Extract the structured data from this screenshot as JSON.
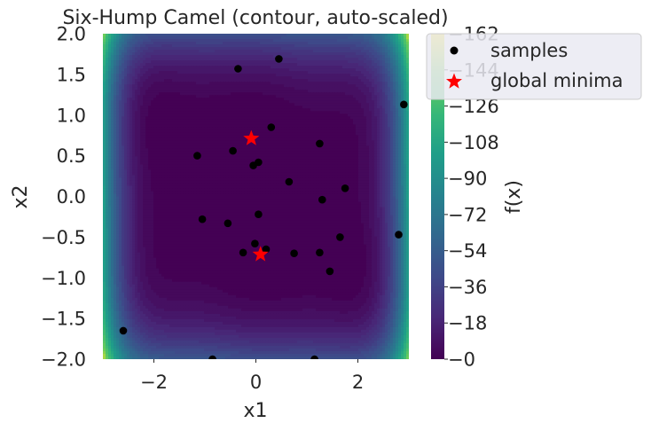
{
  "chart_data": {
    "type": "contour",
    "title": "Six-Hump Camel (contour, auto-scaled)",
    "xlabel": "x1",
    "ylabel": "x2",
    "colorbar_label": "f(x)",
    "xlim": [
      -3,
      3
    ],
    "ylim": [
      -2,
      2
    ],
    "x_ticks": [
      -2,
      0,
      2
    ],
    "y_ticks": [
      -2.0,
      -1.5,
      -1.0,
      -0.5,
      0.0,
      0.5,
      1.0,
      1.5,
      2.0
    ],
    "colorbar_range": [
      0,
      162
    ],
    "colorbar_ticks": [
      0,
      18,
      36,
      54,
      72,
      90,
      108,
      126,
      144,
      162
    ],
    "colormap": "viridis",
    "function": "f(x1,x2) = (4 - 2.1*x1^2 + x1^4/3)*x1^2 + x1*x2 + (-4 + 4*x2^2)*x2^2",
    "series": [
      {
        "name": "samples",
        "marker": "circle",
        "color": "#000000",
        "points": [
          [
            -0.35,
            1.57
          ],
          [
            0.45,
            1.69
          ],
          [
            2.9,
            1.13
          ],
          [
            0.3,
            0.85
          ],
          [
            -1.15,
            0.5
          ],
          [
            -0.45,
            0.56
          ],
          [
            1.25,
            0.65
          ],
          [
            0.05,
            0.42
          ],
          [
            -0.05,
            0.38
          ],
          [
            0.65,
            0.18
          ],
          [
            1.75,
            0.1
          ],
          [
            1.3,
            -0.04
          ],
          [
            0.05,
            -0.22
          ],
          [
            -1.05,
            -0.28
          ],
          [
            -0.55,
            -0.33
          ],
          [
            1.65,
            -0.5
          ],
          [
            2.8,
            -0.47
          ],
          [
            -0.02,
            -0.58
          ],
          [
            0.2,
            -0.65
          ],
          [
            -0.25,
            -0.69
          ],
          [
            0.75,
            -0.7
          ],
          [
            1.25,
            -0.69
          ],
          [
            1.45,
            -0.92
          ],
          [
            -2.6,
            -1.65
          ],
          [
            -0.85,
            -2.0
          ],
          [
            1.15,
            -2.0
          ]
        ]
      },
      {
        "name": "global minima",
        "marker": "star",
        "color": "#ff0000",
        "points": [
          [
            -0.0898,
            0.7126
          ],
          [
            0.0898,
            -0.7126
          ]
        ]
      }
    ],
    "legend_position": "top-right"
  }
}
